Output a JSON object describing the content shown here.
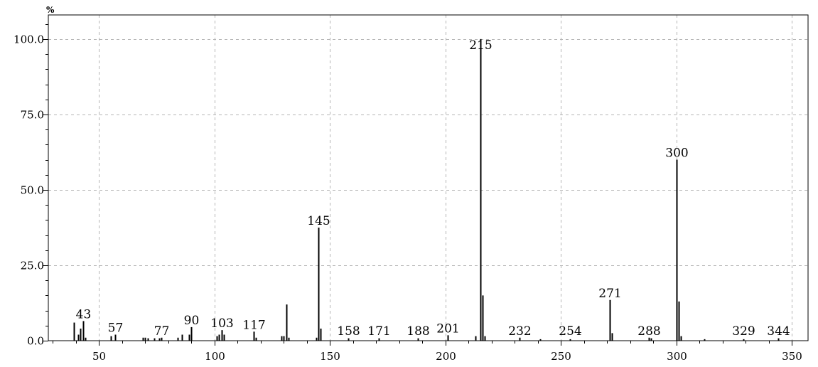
{
  "chart_data": {
    "type": "bar",
    "title": "",
    "xlabel": "",
    "ylabel": "%",
    "xlim": [
      28,
      357
    ],
    "ylim": [
      0,
      108
    ],
    "grid": true,
    "x_ticks": [
      50,
      100,
      150,
      200,
      250,
      300,
      350
    ],
    "y_ticks": [
      0,
      25,
      50,
      75,
      100
    ],
    "y_tick_labels": [
      "0.0",
      "25.0",
      "50.0",
      "75.0",
      "100.0"
    ],
    "colors": {
      "peak": "#000000",
      "grid": "#b4b4b4",
      "axis": "#000000"
    },
    "peaks": [
      {
        "mz": 39,
        "intensity": 6.0
      },
      {
        "mz": 41,
        "intensity": 2.0
      },
      {
        "mz": 42,
        "intensity": 4.0
      },
      {
        "mz": 43,
        "intensity": 6.5,
        "label": "43"
      },
      {
        "mz": 44,
        "intensity": 1.0
      },
      {
        "mz": 55,
        "intensity": 1.5
      },
      {
        "mz": 57,
        "intensity": 2.0,
        "label": "57"
      },
      {
        "mz": 69,
        "intensity": 1.0
      },
      {
        "mz": 70,
        "intensity": 1.0
      },
      {
        "mz": 71,
        "intensity": 0.8
      },
      {
        "mz": 74,
        "intensity": 0.8
      },
      {
        "mz": 76,
        "intensity": 0.8
      },
      {
        "mz": 77,
        "intensity": 1.0,
        "label": "77"
      },
      {
        "mz": 84,
        "intensity": 1.0
      },
      {
        "mz": 86,
        "intensity": 2.0
      },
      {
        "mz": 89,
        "intensity": 2.0
      },
      {
        "mz": 90,
        "intensity": 4.5,
        "label": "90"
      },
      {
        "mz": 101,
        "intensity": 1.5
      },
      {
        "mz": 102,
        "intensity": 2.0
      },
      {
        "mz": 103,
        "intensity": 3.5,
        "label": "103"
      },
      {
        "mz": 104,
        "intensity": 2.0
      },
      {
        "mz": 117,
        "intensity": 3.0,
        "label": "117"
      },
      {
        "mz": 118,
        "intensity": 1.0
      },
      {
        "mz": 129,
        "intensity": 1.5
      },
      {
        "mz": 130,
        "intensity": 1.5
      },
      {
        "mz": 131,
        "intensity": 12.0
      },
      {
        "mz": 132,
        "intensity": 1.0
      },
      {
        "mz": 144,
        "intensity": 1.0
      },
      {
        "mz": 145,
        "intensity": 37.5,
        "label": "145"
      },
      {
        "mz": 146,
        "intensity": 4.0
      },
      {
        "mz": 158,
        "intensity": 0.8,
        "label": "158"
      },
      {
        "mz": 171,
        "intensity": 0.8,
        "label": "171"
      },
      {
        "mz": 188,
        "intensity": 0.8,
        "label": "188"
      },
      {
        "mz": 201,
        "intensity": 1.8,
        "label": "201"
      },
      {
        "mz": 213,
        "intensity": 1.5
      },
      {
        "mz": 215,
        "intensity": 100.0,
        "label": "215"
      },
      {
        "mz": 216,
        "intensity": 15.0
      },
      {
        "mz": 217,
        "intensity": 1.5
      },
      {
        "mz": 232,
        "intensity": 1.0,
        "label": "232"
      },
      {
        "mz": 241,
        "intensity": 0.5
      },
      {
        "mz": 254,
        "intensity": 0.5,
        "label": "254"
      },
      {
        "mz": 271,
        "intensity": 13.5,
        "label": "271"
      },
      {
        "mz": 272,
        "intensity": 2.5
      },
      {
        "mz": 288,
        "intensity": 1.0,
        "label": "288"
      },
      {
        "mz": 289,
        "intensity": 0.8
      },
      {
        "mz": 300,
        "intensity": 60.0,
        "label": "300"
      },
      {
        "mz": 301,
        "intensity": 13.0
      },
      {
        "mz": 302,
        "intensity": 1.5
      },
      {
        "mz": 312,
        "intensity": 0.5
      },
      {
        "mz": 329,
        "intensity": 0.5,
        "label": "329"
      },
      {
        "mz": 344,
        "intensity": 0.8,
        "label": "344"
      }
    ]
  }
}
